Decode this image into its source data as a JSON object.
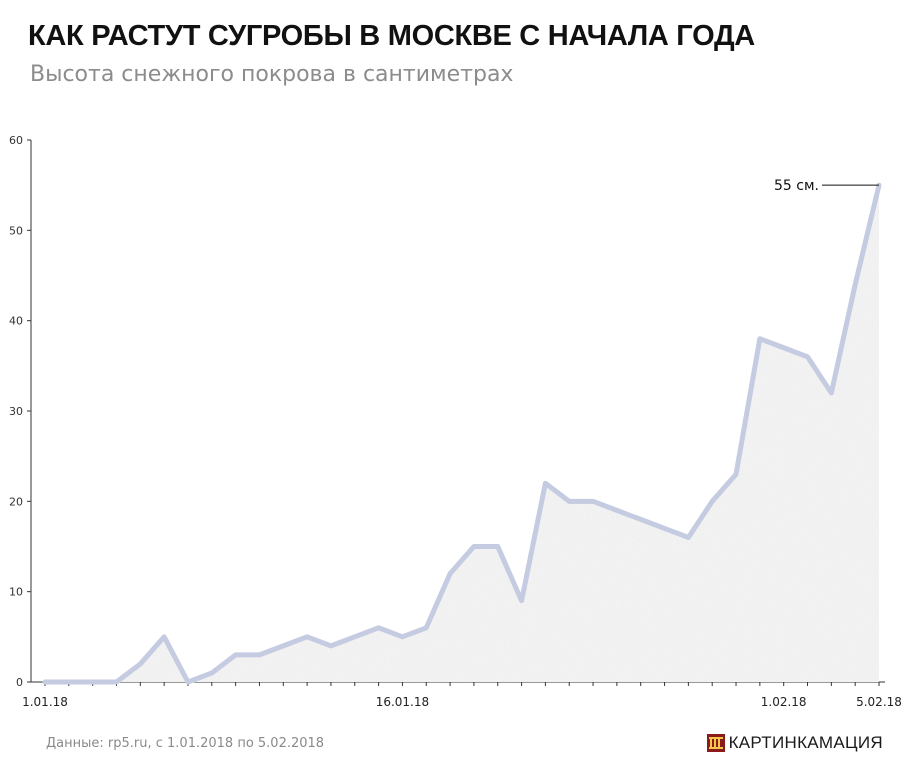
{
  "header": {
    "title": "КАК РАСТУТ СУГРОБЫ В МОСКВЕ С НАЧАЛА ГОДА",
    "subtitle": "Высота снежного покрова в сантиметрах"
  },
  "footer": {
    "source": "Данные: rp5.ru, с 1.01.2018 по 5.02.2018",
    "brand": "КАРТИНКАМАЦИЯ"
  },
  "colors": {
    "line": "#c5cbe0",
    "area": "#ececec",
    "axis": "#333333",
    "grid": "#e6e6e6",
    "brand_logo": "#8b1a1a"
  },
  "chart_data": {
    "type": "area",
    "title": "КАК РАСТУТ СУГРОБЫ В МОСКВЕ С НАЧАЛА ГОДА",
    "subtitle": "Высота снежного покрова в сантиметрах",
    "xlabel": "",
    "ylabel": "",
    "ylim": [
      0,
      60
    ],
    "yticks": [
      0,
      10,
      20,
      30,
      40,
      50,
      60
    ],
    "xtick_labels": [
      {
        "index": 0,
        "label": "1.01.18"
      },
      {
        "index": 15,
        "label": "16.01.18"
      },
      {
        "index": 31,
        "label": "1.02.18"
      },
      {
        "index": 35,
        "label": "5.02.18"
      }
    ],
    "grid": false,
    "annotation": {
      "index": 35,
      "text": "55 см."
    },
    "x": [
      "1.01.18",
      "2.01.18",
      "3.01.18",
      "4.01.18",
      "5.01.18",
      "6.01.18",
      "7.01.18",
      "8.01.18",
      "9.01.18",
      "10.01.18",
      "11.01.18",
      "12.01.18",
      "13.01.18",
      "14.01.18",
      "15.01.18",
      "16.01.18",
      "17.01.18",
      "18.01.18",
      "19.01.18",
      "20.01.18",
      "21.01.18",
      "22.01.18",
      "23.01.18",
      "24.01.18",
      "25.01.18",
      "26.01.18",
      "27.01.18",
      "28.01.18",
      "29.01.18",
      "30.01.18",
      "31.01.18",
      "1.02.18",
      "2.02.18",
      "3.02.18",
      "4.02.18",
      "5.02.18"
    ],
    "values": [
      0,
      0,
      0,
      0,
      2,
      5,
      0,
      1,
      3,
      3,
      4,
      5,
      4,
      5,
      6,
      5,
      6,
      12,
      15,
      15,
      9,
      22,
      20,
      20,
      19,
      18,
      17,
      16,
      20,
      23,
      38,
      37,
      36,
      32,
      44,
      55
    ]
  }
}
